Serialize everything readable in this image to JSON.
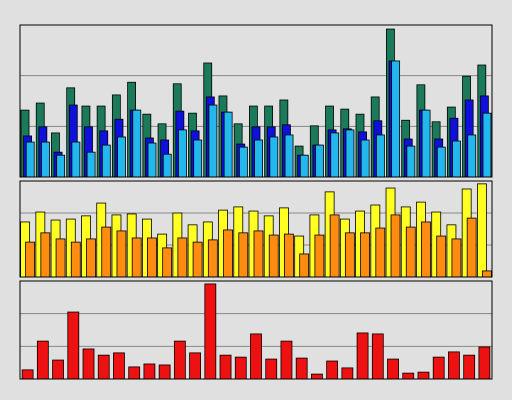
{
  "chart_data": [
    {
      "type": "bar",
      "ylim": [
        0,
        3
      ],
      "yticks": [
        0,
        1,
        2,
        3
      ],
      "grid": true,
      "series": [
        {
          "color": "#1a7a5a",
          "values": [
            1.32,
            1.46,
            0.87,
            1.76,
            1.4,
            1.4,
            1.62,
            1.87,
            1.24,
            1.05,
            1.84,
            1.26,
            2.25,
            1.6,
            1.05,
            1.4,
            1.4,
            1.52,
            0.61,
            1.01,
            1.4,
            1.34,
            1.24,
            1.58,
            2.92,
            1.12,
            1.82,
            1.09,
            1.38,
            1.99,
            2.21
          ]
        },
        {
          "color": "#1010dd",
          "values": [
            0.81,
            0.99,
            0.49,
            1.42,
            0.99,
            0.91,
            1.14,
            1.32,
            0.77,
            0.73,
            1.3,
            0.91,
            1.58,
            1.28,
            0.65,
            0.99,
            0.99,
            1.03,
            0.43,
            0.63,
            0.93,
            0.95,
            0.89,
            1.11,
            2.29,
            0.75,
            1.32,
            0.75,
            1.16,
            1.52,
            1.6
          ]
        },
        {
          "color": "#22b8ee",
          "values": [
            0.69,
            0.69,
            0.43,
            0.69,
            0.49,
            0.63,
            0.79,
            1.32,
            0.67,
            0.45,
            0.93,
            0.73,
            1.42,
            1.28,
            0.59,
            0.73,
            0.79,
            0.83,
            0.43,
            0.63,
            0.87,
            0.93,
            0.73,
            0.83,
            2.29,
            0.61,
            1.32,
            0.59,
            0.71,
            0.83,
            1.26
          ]
        }
      ]
    },
    {
      "type": "bar",
      "ylim": [
        0,
        3
      ],
      "yticks": [
        0,
        1,
        2,
        3
      ],
      "grid": true,
      "series": [
        {
          "color": "#ffff22",
          "values": [
            1.72,
            2.03,
            1.78,
            1.81,
            1.91,
            2.31,
            1.94,
            1.97,
            1.81,
            1.34,
            2.0,
            1.63,
            1.72,
            2.09,
            2.19,
            2.06,
            1.91,
            2.16,
            1.28,
            1.94,
            2.66,
            1.81,
            2.06,
            2.25,
            2.78,
            2.19,
            2.34,
            2.03,
            1.63,
            2.75,
            2.91
          ]
        },
        {
          "color": "#ff8c10",
          "values": [
            1.09,
            1.38,
            1.19,
            1.09,
            1.19,
            1.56,
            1.44,
            1.22,
            1.22,
            0.91,
            1.22,
            1.09,
            1.16,
            1.47,
            1.38,
            1.44,
            1.31,
            1.34,
            0.72,
            1.31,
            1.94,
            1.38,
            1.38,
            1.53,
            1.94,
            1.56,
            1.72,
            1.28,
            1.19,
            1.84,
            0.19
          ]
        }
      ]
    },
    {
      "type": "bar",
      "ylim": [
        0,
        3
      ],
      "yticks": [
        0,
        1,
        2,
        3
      ],
      "grid": true,
      "series": [
        {
          "color": "#ee1111",
          "values": [
            0.28,
            1.16,
            0.58,
            2.05,
            0.92,
            0.73,
            0.8,
            0.37,
            0.46,
            0.43,
            1.16,
            0.8,
            2.91,
            0.73,
            0.67,
            1.38,
            0.61,
            1.16,
            0.64,
            0.15,
            0.55,
            0.34,
            1.41,
            1.38,
            0.61,
            0.18,
            0.21,
            0.67,
            0.83,
            0.73,
            0.98
          ]
        }
      ]
    }
  ]
}
